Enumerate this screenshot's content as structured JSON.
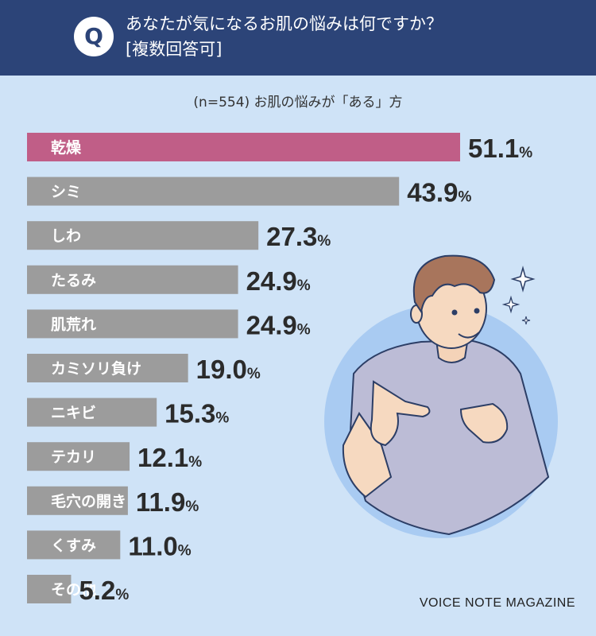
{
  "header": {
    "badge": "Q",
    "question_line1": "あなたが気になるお肌の悩みは何ですか？",
    "question_line2": "[複数回答可]"
  },
  "subtitle": "(n=554) お肌の悩みが「ある」方",
  "credit": "VOICE NOTE MAGAZINE",
  "colors": {
    "header_bg": "#2c4478",
    "background": "#cfe3f7",
    "highlight_bar": "#c05e87",
    "bar": "#9c9c9c",
    "value_text": "#2b2b2b"
  },
  "chart_data": {
    "type": "bar",
    "orientation": "horizontal",
    "unit": "%",
    "categories": [
      "乾燥",
      "シミ",
      "しわ",
      "たるみ",
      "肌荒れ",
      "カミソリ負け",
      "ニキビ",
      "テカリ",
      "毛穴の開き",
      "くすみ",
      "その他"
    ],
    "values": [
      51.1,
      43.9,
      27.3,
      24.9,
      24.9,
      19.0,
      15.3,
      12.1,
      11.9,
      11.0,
      5.2
    ],
    "value_labels": [
      "51.1",
      "43.9",
      "27.3",
      "24.9",
      "24.9",
      "19.0",
      "15.3",
      "12.1",
      "11.9",
      "11.0",
      "5.2"
    ],
    "highlight_index": 0,
    "title": "",
    "xlabel": "",
    "ylabel": ""
  }
}
